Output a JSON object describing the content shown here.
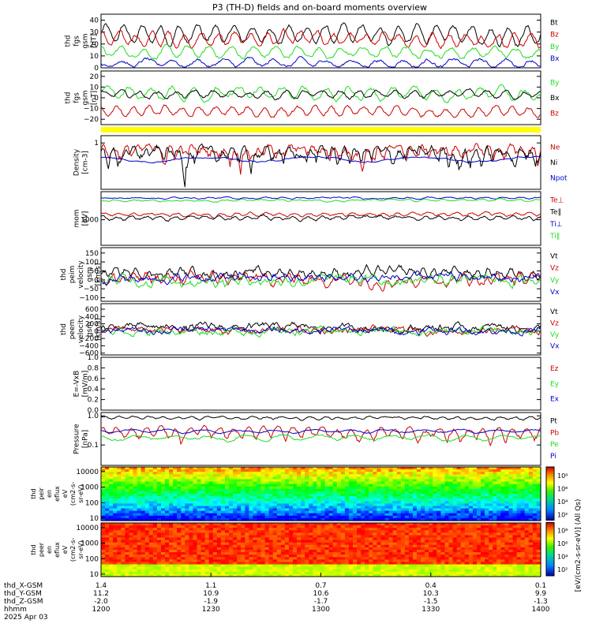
{
  "title": "P3 (TH-D) fields and on-board moments overview",
  "colors": {
    "black": "#000000",
    "red": "#cc0000",
    "green": "#22dd22",
    "blue": "#0000cc",
    "yellow": "#ffff00"
  },
  "chart_data": {
    "type": "line",
    "x_axis": {
      "rows": [
        {
          "name": "thd_X-GSM",
          "values": [
            "1.4",
            "1.1",
            "0.7",
            "0.4",
            "0.1"
          ]
        },
        {
          "name": "thd_Y-GSM",
          "values": [
            "11.2",
            "10.9",
            "10.6",
            "10.3",
            "9.9"
          ]
        },
        {
          "name": "thd_Z-GSM",
          "values": [
            "-2.0",
            "-1.9",
            "-1.7",
            "-1.5",
            "-1.3"
          ]
        },
        {
          "name": "hhmm",
          "values": [
            "1200",
            "1230",
            "1300",
            "1330",
            "1400"
          ]
        }
      ],
      "date": "2025 Apr 03",
      "range_minutes": [
        0,
        120
      ]
    },
    "panels": [
      {
        "id": "fgs",
        "ylabel": [
          "thd",
          "fgs",
          "gsm",
          "[nT]"
        ],
        "yrange": [
          0,
          45
        ],
        "log": false,
        "ticks": [
          "40",
          "30",
          "20",
          "10",
          "0"
        ],
        "tick_values": [
          40,
          30,
          20,
          10,
          0
        ],
        "series": [
          {
            "name": "Bt",
            "color": "#000000",
            "level": 28,
            "amp": 7,
            "noise": 1.5,
            "period": 5
          },
          {
            "name": "Bz",
            "color": "#cc0000",
            "level": 24,
            "amp": 5,
            "noise": 1.5,
            "period": 4.5
          },
          {
            "name": "By",
            "color": "#22dd22",
            "level": 13,
            "amp": 4,
            "noise": 1.2,
            "period": 6
          },
          {
            "name": "Bx",
            "color": "#0000cc",
            "level": 4,
            "amp": 3,
            "noise": 1,
            "period": 7
          }
        ]
      },
      {
        "id": "fgs2",
        "ylabel": [
          "thd",
          "fgs",
          "gsm",
          "[nT]"
        ],
        "yrange": [
          -25,
          25
        ],
        "log": false,
        "ticks": [
          "20",
          "10",
          "0",
          "−10",
          "−20"
        ],
        "tick_values": [
          20,
          10,
          0,
          -10,
          -20
        ],
        "series": [
          {
            "name": "By",
            "color": "#22dd22",
            "level": 4,
            "amp": 5,
            "noise": 1.5,
            "period": 6
          },
          {
            "name": "Bx",
            "color": "#000000",
            "level": 3,
            "amp": 3,
            "noise": 1,
            "period": 5
          },
          {
            "name": "Bz",
            "color": "#cc0000",
            "level": -13,
            "amp": 4,
            "noise": 1.2,
            "period": 4.5
          }
        ]
      },
      {
        "id": "density",
        "ylabel": [
          "Density",
          "[cm-3]"
        ],
        "yrange": [
          0.05,
          1.6
        ],
        "log": true,
        "ticks": [
          "1"
        ],
        "tick_values": [
          1
        ],
        "series": [
          {
            "name": "Ne",
            "color": "#cc0000",
            "level": 0.6,
            "amp": 0.15,
            "noise": 0.12,
            "period": 3
          },
          {
            "name": "Ni",
            "color": "#000000",
            "level": 0.5,
            "amp": 0.15,
            "noise": 0.12,
            "period": 3
          },
          {
            "name": "Npot",
            "color": "#0000cc",
            "level": 0.35,
            "amp": 0.05,
            "noise": 0.01,
            "period": 30
          }
        ]
      },
      {
        "id": "temp",
        "ylabel": [
          "mom",
          "[eV]"
        ],
        "yrange": [
          150,
          8000
        ],
        "log": true,
        "ticks": [
          "1000"
        ],
        "tick_values": [
          1000
        ],
        "series": [
          {
            "name": "Te⊥",
            "color": "#cc0000",
            "level": 1500,
            "amp": 150,
            "noise": 80,
            "period": 4
          },
          {
            "name": "Te∥",
            "color": "#000000",
            "level": 1150,
            "amp": 120,
            "noise": 70,
            "period": 4
          },
          {
            "name": "Ti⊥",
            "color": "#0000cc",
            "level": 5000,
            "amp": 200,
            "noise": 150,
            "period": 5
          },
          {
            "name": "Ti∥",
            "color": "#22dd22",
            "level": 4200,
            "amp": 200,
            "noise": 150,
            "period": 5
          }
        ]
      },
      {
        "id": "vi",
        "ylabel": [
          "thd",
          "peim",
          "velocity",
          "gsm",
          "[km/s]"
        ],
        "yrange": [
          -120,
          180
        ],
        "log": false,
        "ticks": [
          "150",
          "100",
          "50",
          "0",
          "−50",
          "−100"
        ],
        "tick_values": [
          150,
          100,
          50,
          0,
          -50,
          -100
        ],
        "series": [
          {
            "name": "Vt",
            "color": "#000000",
            "level": 40,
            "amp": 15,
            "noise": 12,
            "period": 3
          },
          {
            "name": "Vz",
            "color": "#cc0000",
            "level": 5,
            "amp": 15,
            "noise": 15,
            "period": 3
          },
          {
            "name": "Vy",
            "color": "#22dd22",
            "level": 0,
            "amp": 12,
            "noise": 15,
            "period": 3
          },
          {
            "name": "Vx",
            "color": "#0000cc",
            "level": 10,
            "amp": 10,
            "noise": 12,
            "period": 3
          }
        ]
      },
      {
        "id": "ve",
        "ylabel": [
          "thd",
          "peem",
          "velocity",
          "gsm",
          "[km/s]"
        ],
        "yrange": [
          -650,
          750
        ],
        "log": false,
        "ticks": [
          "600",
          "400",
          "200",
          "0",
          "−200",
          "−400",
          "−600"
        ],
        "tick_values": [
          600,
          400,
          200,
          0,
          -200,
          -400,
          -600
        ],
        "series": [
          {
            "name": "Vt",
            "color": "#000000",
            "level": 100,
            "amp": 20,
            "noise": 60,
            "period": 2
          },
          {
            "name": "Vz",
            "color": "#cc0000",
            "level": 20,
            "amp": 20,
            "noise": 50,
            "period": 2
          },
          {
            "name": "Vy",
            "color": "#22dd22",
            "level": 0,
            "amp": 20,
            "noise": 55,
            "period": 2
          },
          {
            "name": "Vx",
            "color": "#0000cc",
            "level": 20,
            "amp": 20,
            "noise": 50,
            "period": 2
          }
        ]
      },
      {
        "id": "efield",
        "ylabel": [
          "E=-VxB",
          "[mV/m]"
        ],
        "yrange": [
          0,
          1
        ],
        "log": false,
        "ticks": [
          "1.0",
          "0.8",
          "0.6",
          "0.4",
          "0.2",
          "0.0"
        ],
        "tick_values": [
          1,
          0.8,
          0.6,
          0.4,
          0.2,
          0
        ],
        "series": [],
        "legend": [
          {
            "name": "Ez",
            "color": "#cc0000"
          },
          {
            "name": "Ey",
            "color": "#22dd22"
          },
          {
            "name": "Ex",
            "color": "#0000cc"
          }
        ]
      },
      {
        "id": "pressure",
        "ylabel": [
          "Pressure",
          "[nPa]"
        ],
        "yrange": [
          0.02,
          1.3
        ],
        "log": true,
        "ticks": [
          "1.0",
          "0.1"
        ],
        "tick_values": [
          1,
          0.1
        ],
        "series": [
          {
            "name": "Pt",
            "color": "#000000",
            "level": 0.85,
            "amp": 0.08,
            "noise": 0.04,
            "period": 4
          },
          {
            "name": "Pb",
            "color": "#cc0000",
            "level": 0.28,
            "amp": 0.1,
            "noise": 0.04,
            "period": 4
          },
          {
            "name": "Pe",
            "color": "#22dd22",
            "level": 0.18,
            "amp": 0.03,
            "noise": 0.01,
            "period": 10
          },
          {
            "name": "Pi",
            "color": "#0000cc",
            "level": 0.3,
            "amp": 0.03,
            "noise": 0.01,
            "period": 10
          }
        ]
      }
    ],
    "spectrograms": [
      {
        "id": "peir",
        "ylabel": [
          "thd",
          "peir",
          "en",
          "eflux",
          "eV",
          "(cm2-s-",
          "sr-eV)"
        ],
        "ticks": [
          "10000",
          "1000",
          "100",
          "10"
        ],
        "tick_values": [
          10000,
          1000,
          100,
          10
        ],
        "yrange": [
          7,
          20000
        ]
      },
      {
        "id": "peer",
        "ylabel": [
          "thd",
          "peer",
          "en",
          "eflux",
          "eV",
          "(cm2-s-",
          "sr-eV)"
        ],
        "ticks": [
          "10000",
          "1000",
          "100",
          "10"
        ],
        "tick_values": [
          10000,
          1000,
          100,
          10
        ],
        "yrange": [
          7,
          20000
        ]
      }
    ],
    "colorbar": {
      "label": "[eV/(cm2-s-sr-eV)] (All Qs)",
      "ticks_top": [
        "10⁸",
        "10⁶",
        "10⁴",
        "10²"
      ],
      "ticks_bottom": [
        "10⁸",
        "10⁶",
        "10⁴",
        "10²"
      ]
    }
  }
}
